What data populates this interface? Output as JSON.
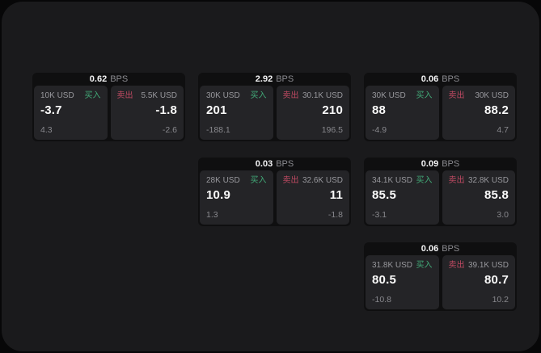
{
  "labels": {
    "bps_unit": "BPS",
    "buy": "买入",
    "sell": "卖出"
  },
  "colors": {
    "window_bg": "#1a1a1c",
    "card_bg": "#0f0f10",
    "panel_bg": "#242427",
    "buy_green": "#42aa78",
    "sell_red": "#bf4a62",
    "value_white": "#fafafa",
    "muted_gray": "#98989d"
  },
  "cards": [
    {
      "bps": "0.62",
      "buy": {
        "amount": "10K USD",
        "value": "-3.7",
        "sub": "4.3"
      },
      "sell": {
        "amount": "5.5K USD",
        "value": "-1.8",
        "sub": "-2.6"
      }
    },
    {
      "bps": "2.92",
      "buy": {
        "amount": "30K USD",
        "value": "201",
        "sub": "-188.1"
      },
      "sell": {
        "amount": "30.1K USD",
        "value": "210",
        "sub": "196.5"
      }
    },
    {
      "bps": "0.06",
      "buy": {
        "amount": "30K USD",
        "value": "88",
        "sub": "-4.9"
      },
      "sell": {
        "amount": "30K USD",
        "value": "88.2",
        "sub": "4.7"
      }
    },
    {
      "bps": "0.03",
      "buy": {
        "amount": "28K USD",
        "value": "10.9",
        "sub": "1.3"
      },
      "sell": {
        "amount": "32.6K USD",
        "value": "11",
        "sub": "-1.8"
      }
    },
    {
      "bps": "0.09",
      "buy": {
        "amount": "34.1K USD",
        "value": "85.5",
        "sub": "-3.1"
      },
      "sell": {
        "amount": "32.8K USD",
        "value": "85.8",
        "sub": "3.0"
      }
    },
    {
      "bps": "0.06",
      "buy": {
        "amount": "31.8K USD",
        "value": "80.5",
        "sub": "-10.8"
      },
      "sell": {
        "amount": "39.1K USD",
        "value": "80.7",
        "sub": "10.2"
      }
    }
  ]
}
